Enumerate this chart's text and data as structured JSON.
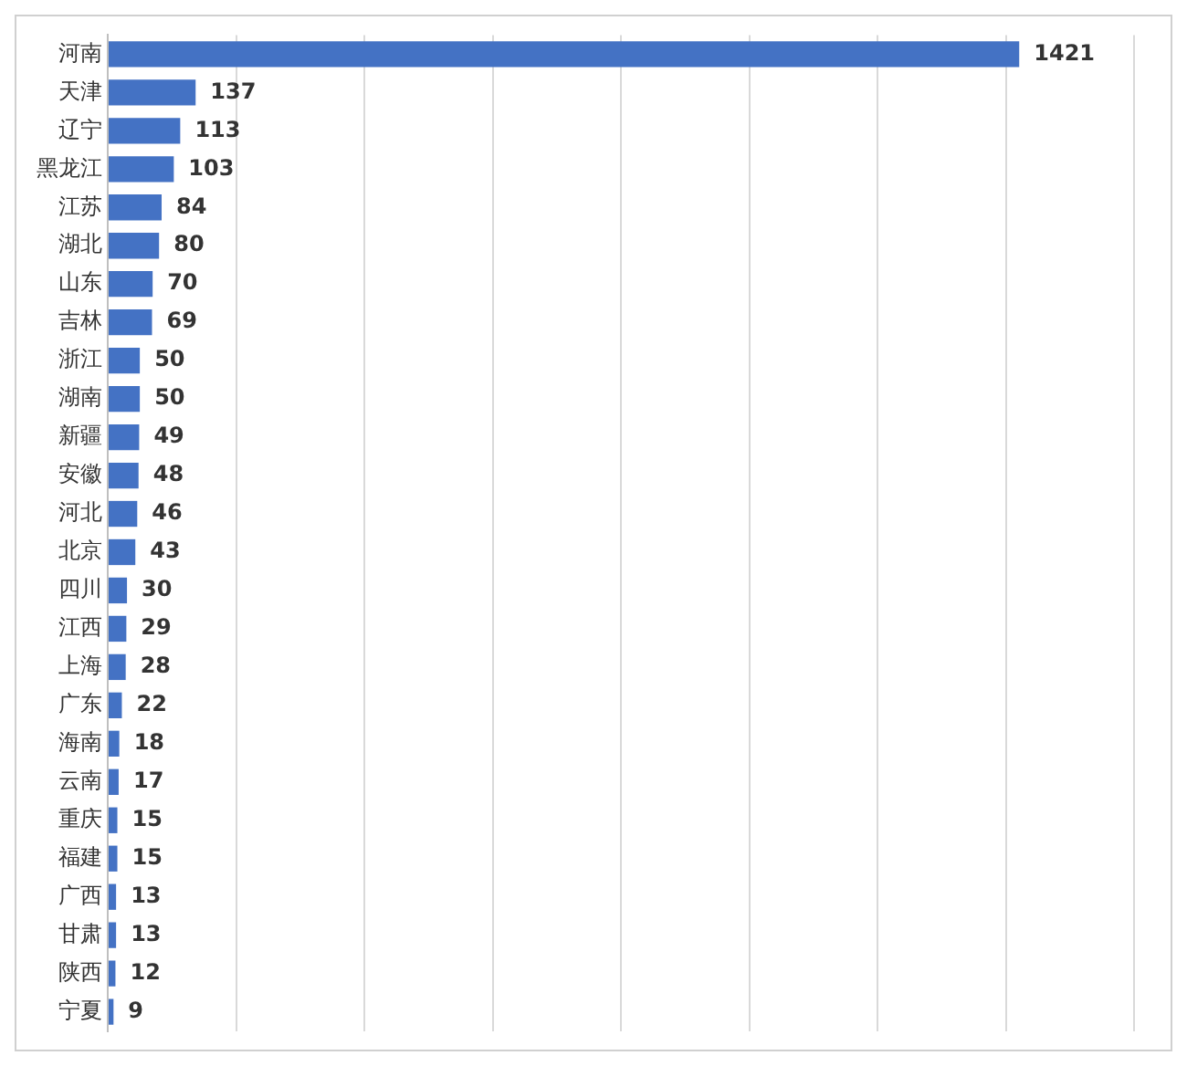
{
  "chart_data": {
    "type": "bar",
    "orientation": "horizontal",
    "categories": [
      "河南",
      "天津",
      "辽宁",
      "黑龙江",
      "江苏",
      "湖北",
      "山东",
      "吉林",
      "浙江",
      "湖南",
      "新疆",
      "安徽",
      "河北",
      "北京",
      "四川",
      "江西",
      "上海",
      "广东",
      "海南",
      "云南",
      "重庆",
      "福建",
      "广西",
      "甘肃",
      "陕西",
      "宁夏"
    ],
    "values": [
      1421,
      137,
      113,
      103,
      84,
      80,
      70,
      69,
      50,
      50,
      49,
      48,
      46,
      43,
      30,
      29,
      28,
      22,
      18,
      17,
      15,
      15,
      13,
      13,
      12,
      9
    ],
    "color": "#4472c4",
    "xlim": [
      0,
      1600
    ],
    "xticks": [
      {
        "value": 0,
        "label": null
      },
      {
        "value": 200,
        "label": null
      },
      {
        "value": 400,
        "label": null
      },
      {
        "value": 600,
        "label": null
      },
      {
        "value": 800,
        "label": null
      },
      {
        "value": 1000,
        "label": null
      },
      {
        "value": 1200,
        "label": null
      },
      {
        "value": 1400,
        "label": null
      },
      {
        "value": 1600,
        "label": null
      }
    ],
    "grid": "x",
    "tick_labels": "y",
    "data_labels": true,
    "legend": false
  }
}
